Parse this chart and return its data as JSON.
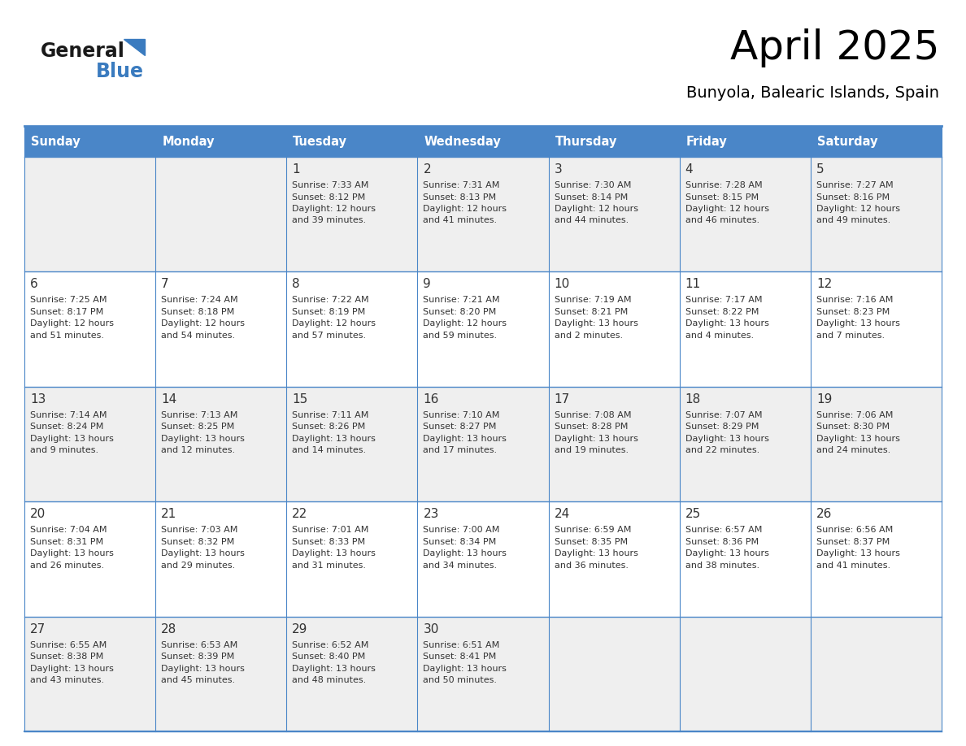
{
  "title": "April 2025",
  "subtitle": "Bunyola, Balearic Islands, Spain",
  "days_of_week": [
    "Sunday",
    "Monday",
    "Tuesday",
    "Wednesday",
    "Thursday",
    "Friday",
    "Saturday"
  ],
  "header_bg": "#4a86c8",
  "header_text": "#FFFFFF",
  "cell_bg_white": "#FFFFFF",
  "cell_bg_gray": "#EFEFEF",
  "border_color": "#4a86c8",
  "text_color": "#333333",
  "day_num_color": "#333333",
  "logo_general_color": "#1a1a1a",
  "logo_blue_color": "#3a7bbf",
  "calendar": [
    [
      {
        "day": null,
        "sunrise": null,
        "sunset": null,
        "daylight": null
      },
      {
        "day": null,
        "sunrise": null,
        "sunset": null,
        "daylight": null
      },
      {
        "day": 1,
        "sunrise": "7:33 AM",
        "sunset": "8:12 PM",
        "daylight": "12 hours",
        "daylight2": "and 39 minutes."
      },
      {
        "day": 2,
        "sunrise": "7:31 AM",
        "sunset": "8:13 PM",
        "daylight": "12 hours",
        "daylight2": "and 41 minutes."
      },
      {
        "day": 3,
        "sunrise": "7:30 AM",
        "sunset": "8:14 PM",
        "daylight": "12 hours",
        "daylight2": "and 44 minutes."
      },
      {
        "day": 4,
        "sunrise": "7:28 AM",
        "sunset": "8:15 PM",
        "daylight": "12 hours",
        "daylight2": "and 46 minutes."
      },
      {
        "day": 5,
        "sunrise": "7:27 AM",
        "sunset": "8:16 PM",
        "daylight": "12 hours",
        "daylight2": "and 49 minutes."
      }
    ],
    [
      {
        "day": 6,
        "sunrise": "7:25 AM",
        "sunset": "8:17 PM",
        "daylight": "12 hours",
        "daylight2": "and 51 minutes."
      },
      {
        "day": 7,
        "sunrise": "7:24 AM",
        "sunset": "8:18 PM",
        "daylight": "12 hours",
        "daylight2": "and 54 minutes."
      },
      {
        "day": 8,
        "sunrise": "7:22 AM",
        "sunset": "8:19 PM",
        "daylight": "12 hours",
        "daylight2": "and 57 minutes."
      },
      {
        "day": 9,
        "sunrise": "7:21 AM",
        "sunset": "8:20 PM",
        "daylight": "12 hours",
        "daylight2": "and 59 minutes."
      },
      {
        "day": 10,
        "sunrise": "7:19 AM",
        "sunset": "8:21 PM",
        "daylight": "13 hours",
        "daylight2": "and 2 minutes."
      },
      {
        "day": 11,
        "sunrise": "7:17 AM",
        "sunset": "8:22 PM",
        "daylight": "13 hours",
        "daylight2": "and 4 minutes."
      },
      {
        "day": 12,
        "sunrise": "7:16 AM",
        "sunset": "8:23 PM",
        "daylight": "13 hours",
        "daylight2": "and 7 minutes."
      }
    ],
    [
      {
        "day": 13,
        "sunrise": "7:14 AM",
        "sunset": "8:24 PM",
        "daylight": "13 hours",
        "daylight2": "and 9 minutes."
      },
      {
        "day": 14,
        "sunrise": "7:13 AM",
        "sunset": "8:25 PM",
        "daylight": "13 hours",
        "daylight2": "and 12 minutes."
      },
      {
        "day": 15,
        "sunrise": "7:11 AM",
        "sunset": "8:26 PM",
        "daylight": "13 hours",
        "daylight2": "and 14 minutes."
      },
      {
        "day": 16,
        "sunrise": "7:10 AM",
        "sunset": "8:27 PM",
        "daylight": "13 hours",
        "daylight2": "and 17 minutes."
      },
      {
        "day": 17,
        "sunrise": "7:08 AM",
        "sunset": "8:28 PM",
        "daylight": "13 hours",
        "daylight2": "and 19 minutes."
      },
      {
        "day": 18,
        "sunrise": "7:07 AM",
        "sunset": "8:29 PM",
        "daylight": "13 hours",
        "daylight2": "and 22 minutes."
      },
      {
        "day": 19,
        "sunrise": "7:06 AM",
        "sunset": "8:30 PM",
        "daylight": "13 hours",
        "daylight2": "and 24 minutes."
      }
    ],
    [
      {
        "day": 20,
        "sunrise": "7:04 AM",
        "sunset": "8:31 PM",
        "daylight": "13 hours",
        "daylight2": "and 26 minutes."
      },
      {
        "day": 21,
        "sunrise": "7:03 AM",
        "sunset": "8:32 PM",
        "daylight": "13 hours",
        "daylight2": "and 29 minutes."
      },
      {
        "day": 22,
        "sunrise": "7:01 AM",
        "sunset": "8:33 PM",
        "daylight": "13 hours",
        "daylight2": "and 31 minutes."
      },
      {
        "day": 23,
        "sunrise": "7:00 AM",
        "sunset": "8:34 PM",
        "daylight": "13 hours",
        "daylight2": "and 34 minutes."
      },
      {
        "day": 24,
        "sunrise": "6:59 AM",
        "sunset": "8:35 PM",
        "daylight": "13 hours",
        "daylight2": "and 36 minutes."
      },
      {
        "day": 25,
        "sunrise": "6:57 AM",
        "sunset": "8:36 PM",
        "daylight": "13 hours",
        "daylight2": "and 38 minutes."
      },
      {
        "day": 26,
        "sunrise": "6:56 AM",
        "sunset": "8:37 PM",
        "daylight": "13 hours",
        "daylight2": "and 41 minutes."
      }
    ],
    [
      {
        "day": 27,
        "sunrise": "6:55 AM",
        "sunset": "8:38 PM",
        "daylight": "13 hours",
        "daylight2": "and 43 minutes."
      },
      {
        "day": 28,
        "sunrise": "6:53 AM",
        "sunset": "8:39 PM",
        "daylight": "13 hours",
        "daylight2": "and 45 minutes."
      },
      {
        "day": 29,
        "sunrise": "6:52 AM",
        "sunset": "8:40 PM",
        "daylight": "13 hours",
        "daylight2": "and 48 minutes."
      },
      {
        "day": 30,
        "sunrise": "6:51 AM",
        "sunset": "8:41 PM",
        "daylight": "13 hours",
        "daylight2": "and 50 minutes."
      },
      {
        "day": null,
        "sunrise": null,
        "sunset": null,
        "daylight": null,
        "daylight2": null
      },
      {
        "day": null,
        "sunrise": null,
        "sunset": null,
        "daylight": null,
        "daylight2": null
      },
      {
        "day": null,
        "sunrise": null,
        "sunset": null,
        "daylight": null,
        "daylight2": null
      }
    ]
  ]
}
